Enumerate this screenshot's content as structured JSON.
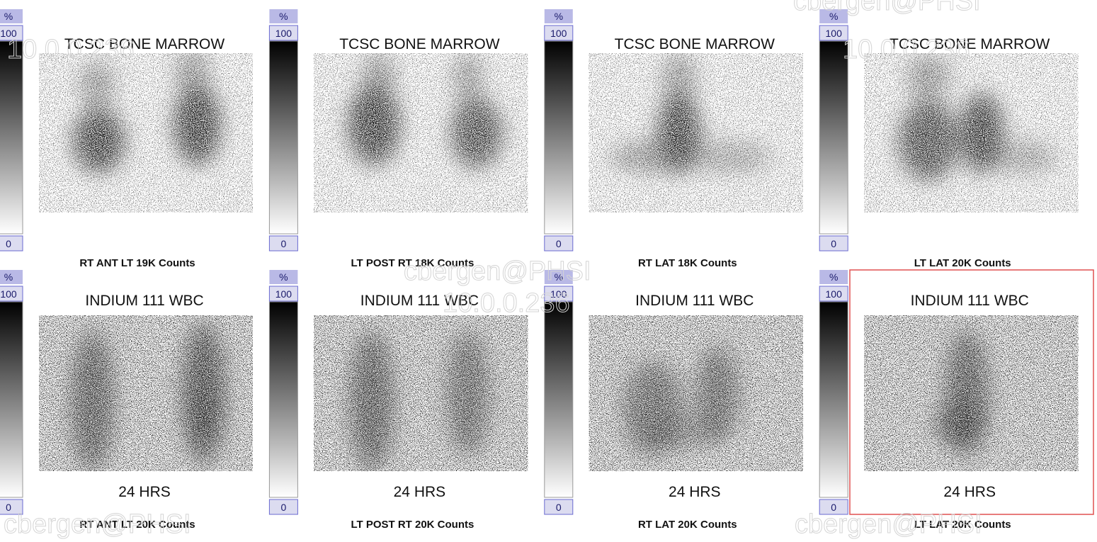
{
  "rows": [
    {
      "panels": [
        {
          "scale": {
            "unit": "%",
            "max": 100,
            "min": 0
          },
          "title": "TCSC BONE MARROW",
          "caption": "RT ANT LT 19K Counts"
        },
        {
          "scale": {
            "unit": "%",
            "max": 100,
            "min": 0
          },
          "title": "TCSC BONE MARROW",
          "caption": "LT POST RT 18K Counts"
        },
        {
          "scale": {
            "unit": "%",
            "max": 100,
            "min": 0
          },
          "title": "TCSC BONE MARROW",
          "caption": "RT LAT 18K Counts"
        },
        {
          "scale": {
            "unit": "%",
            "max": 100,
            "min": 0
          },
          "title": "TCSC BONE MARROW",
          "caption": "LT LAT 20K Counts"
        }
      ]
    },
    {
      "panels": [
        {
          "scale": {
            "unit": "%",
            "max": 100,
            "min": 0
          },
          "title": "INDIUM 111 WBC",
          "subtitle": "24 HRS",
          "caption": "RT ANT LT 20K Counts"
        },
        {
          "scale": {
            "unit": "%",
            "max": 100,
            "min": 0
          },
          "title": "INDIUM 111 WBC",
          "subtitle": "24 HRS",
          "caption": "LT POST RT 20K Counts"
        },
        {
          "scale": {
            "unit": "%",
            "max": 100,
            "min": 0
          },
          "title": "INDIUM 111 WBC",
          "subtitle": "24 HRS",
          "caption": "RT LAT 20K Counts"
        },
        {
          "scale": {
            "unit": "%",
            "max": 100,
            "min": 0
          },
          "title": "INDIUM 111 WBC",
          "subtitle": "24 HRS",
          "caption": "LT LAT 20K Counts"
        }
      ]
    }
  ],
  "watermarks": [
    "cbergen@PHSI",
    "10.0.0.236"
  ]
}
